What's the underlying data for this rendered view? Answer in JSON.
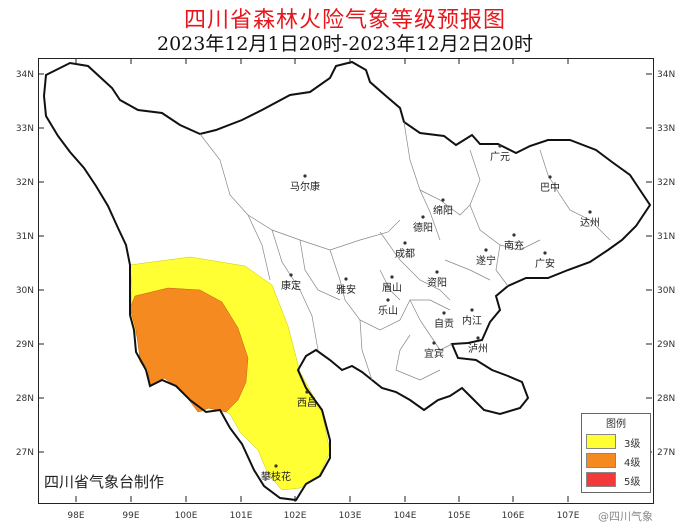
{
  "title": "四川省森林火险气象等级预报图",
  "subtitle": "2023年12月1日20时-2023年12月2日20时",
  "credit": "四川省气象台制作",
  "watermark": "@四川气象",
  "legend": {
    "title": "图例",
    "items": [
      {
        "label": "3级",
        "color": "#ffff33"
      },
      {
        "label": "4级",
        "color": "#f58a21"
      },
      {
        "label": "5级",
        "color": "#f23a3a"
      }
    ]
  },
  "axes": {
    "lat_labels": [
      "34N",
      "33N",
      "32N",
      "31N",
      "30N",
      "29N",
      "28N",
      "27N"
    ],
    "lon_labels": [
      "98E",
      "99E",
      "100E",
      "101E",
      "102E",
      "103E",
      "104E",
      "105E",
      "106E",
      "107E"
    ]
  },
  "cities": [
    "马尔康",
    "广元",
    "巴中",
    "绵阳",
    "达州",
    "德阳",
    "南充",
    "成都",
    "遂宁",
    "广安",
    "康定",
    "雅安",
    "眉山",
    "资阳",
    "乐山",
    "自贡",
    "内江",
    "宜宾",
    "泸州",
    "西昌",
    "攀枝花"
  ]
}
